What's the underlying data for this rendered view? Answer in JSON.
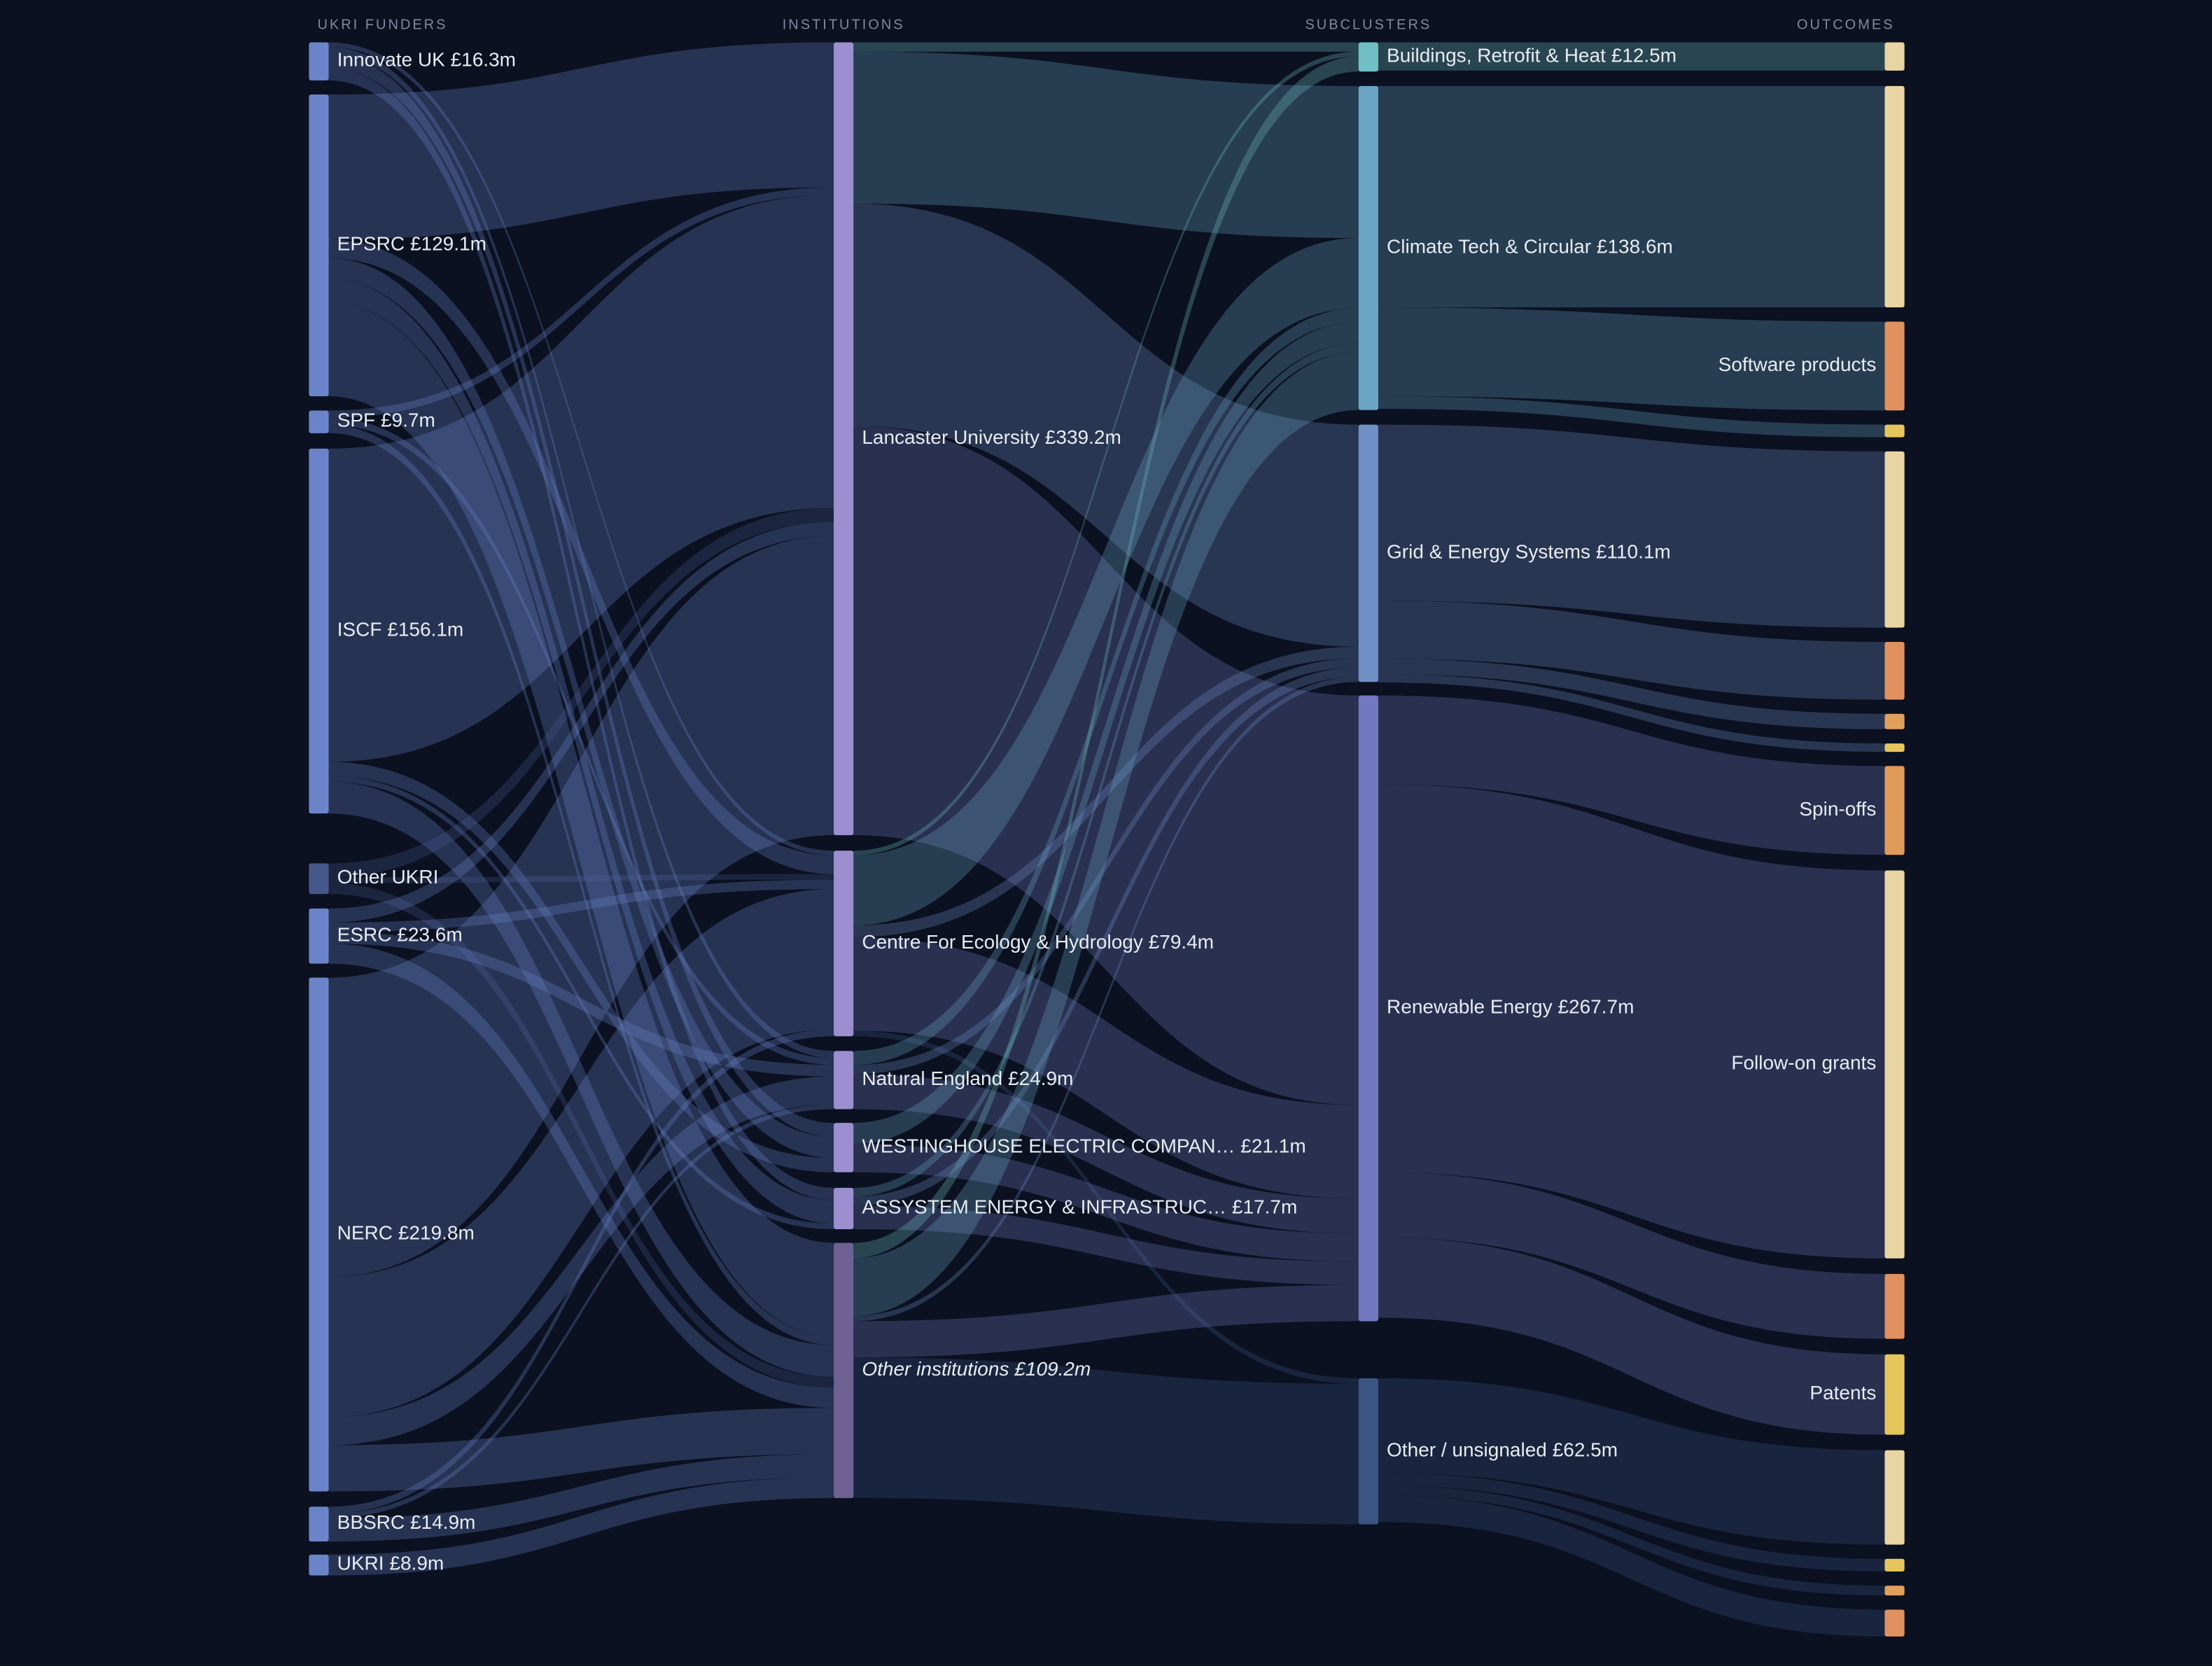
{
  "chart_data": {
    "type": "sankey",
    "columns": [
      {
        "title": "UKRI FUNDERS",
        "nodes": [
          {
            "name": "Innovate UK",
            "value": 16.3,
            "value_label": "£16.3m",
            "color": "#6b84c9"
          },
          {
            "name": "EPSRC",
            "value": 129.1,
            "value_label": "£129.1m",
            "color": "#6b84c9"
          },
          {
            "name": "SPF",
            "value": 9.7,
            "value_label": "£9.7m",
            "color": "#6b84c9"
          },
          {
            "name": "ISCF",
            "value": 156.1,
            "value_label": "£156.1m",
            "color": "#6b84c9"
          },
          {
            "name": "Other UKRI",
            "value": 13.1,
            "color": "#46578a"
          },
          {
            "name": "ESRC",
            "value": 23.6,
            "value_label": "£23.6m",
            "color": "#6b84c9"
          },
          {
            "name": "NERC",
            "value": 219.8,
            "value_label": "£219.8m",
            "color": "#6b84c9"
          },
          {
            "name": "BBSRC",
            "value": 14.9,
            "value_label": "£14.9m",
            "color": "#6b84c9"
          },
          {
            "name": "UKRI",
            "value": 8.9,
            "value_label": "£8.9m",
            "color": "#6b84c9"
          }
        ]
      },
      {
        "title": "INSTITUTIONS",
        "nodes": [
          {
            "name": "Lancaster University",
            "value": 339.2,
            "value_label": "£339.2m",
            "color": "#9b8fd0"
          },
          {
            "name": "Centre For Ecology & Hydrology",
            "value": 79.4,
            "value_label": "£79.4m",
            "color": "#9b8fd0"
          },
          {
            "name": "Natural England",
            "value": 24.9,
            "value_label": "£24.9m",
            "color": "#9b8fd0"
          },
          {
            "name": "WESTINGHOUSE ELECTRIC COMPAN…",
            "value": 21.1,
            "value_label": "£21.1m",
            "color": "#9b8fd0"
          },
          {
            "name": "ASSYSTEM ENERGY & INFRASTRUC…",
            "value": 17.7,
            "value_label": "£17.7m",
            "color": "#9b8fd0"
          },
          {
            "name": "Other institutions",
            "value": 109.2,
            "value_label": "£109.2m",
            "color": "#6e6294",
            "italic": true
          }
        ]
      },
      {
        "title": "SUBCLUSTERS",
        "nodes": [
          {
            "name": "Buildings, Retrofit & Heat",
            "value": 12.5,
            "value_label": "£12.5m",
            "color": "#6fbfc4"
          },
          {
            "name": "Climate Tech & Circular",
            "value": 138.6,
            "value_label": "£138.6m",
            "color": "#6aa5c4"
          },
          {
            "name": "Grid & Energy Systems",
            "value": 110.1,
            "value_label": "£110.1m",
            "color": "#7090c8"
          },
          {
            "name": "Renewable Energy",
            "value": 267.7,
            "value_label": "£267.7m",
            "color": "#7279c0"
          },
          {
            "name": "Other / unsignaled",
            "value": 62.5,
            "value_label": "£62.5m",
            "color": "#3b5585"
          }
        ]
      },
      {
        "title": "OUTCOMES",
        "nodes": [
          {
            "name": null,
            "value": 12.1,
            "color": "#e8d5a3"
          },
          {
            "name": null,
            "value": 94.7,
            "color": "#e8d5a3"
          },
          {
            "name": "Software products",
            "value": 38,
            "color": "#e0915f"
          },
          {
            "name": null,
            "value": 5.4,
            "color": "#e6c65c"
          },
          {
            "name": null,
            "value": 75.4,
            "color": "#e8d5a3"
          },
          {
            "name": null,
            "value": 24.7,
            "color": "#e0915f"
          },
          {
            "name": null,
            "value": 6.6,
            "color": "#e0a05c"
          },
          {
            "name": null,
            "value": 3.6,
            "color": "#e6c65c"
          },
          {
            "name": "Spin-offs",
            "value": 38,
            "color": "#e09a5a"
          },
          {
            "name": "Follow-on grants",
            "value": 166,
            "color": "#e8d5a3"
          },
          {
            "name": null,
            "value": 27.8,
            "color": "#e0915f"
          },
          {
            "name": "Patents",
            "value": 34.4,
            "color": "#e6c65c"
          },
          {
            "name": null,
            "value": 40.4,
            "color": "#e8d5a3"
          },
          {
            "name": null,
            "value": 5.4,
            "color": "#e6c65c"
          },
          {
            "name": null,
            "value": 4.2,
            "color": "#e0a05c"
          },
          {
            "name": null,
            "value": 11.5,
            "color": "#e0915f"
          }
        ]
      }
    ],
    "links": [
      [
        {
          "source": 0,
          "target": 1,
          "value": 2
        },
        {
          "source": 0,
          "target": 2,
          "value": 3
        },
        {
          "source": 0,
          "target": 3,
          "value": 6
        },
        {
          "source": 0,
          "target": 4,
          "value": 5.3
        },
        {
          "source": 1,
          "target": 0,
          "value": 62
        },
        {
          "source": 1,
          "target": 1,
          "value": 8
        },
        {
          "source": 1,
          "target": 3,
          "value": 9
        },
        {
          "source": 1,
          "target": 4,
          "value": 10
        },
        {
          "source": 1,
          "target": 5,
          "value": 40.1
        },
        {
          "source": 2,
          "target": 0,
          "value": 3.2
        },
        {
          "source": 2,
          "target": 2,
          "value": 2.9
        },
        {
          "source": 2,
          "target": 5,
          "value": 3.6
        },
        {
          "source": 3,
          "target": 0,
          "value": 134
        },
        {
          "source": 3,
          "target": 3,
          "value": 6.1
        },
        {
          "source": 3,
          "target": 4,
          "value": 2.4
        },
        {
          "source": 3,
          "target": 5,
          "value": 13.6
        },
        {
          "source": 4,
          "target": 0,
          "value": 6
        },
        {
          "source": 4,
          "target": 1,
          "value": 2.4
        },
        {
          "source": 4,
          "target": 5,
          "value": 4.7
        },
        {
          "source": 5,
          "target": 0,
          "value": 6
        },
        {
          "source": 5,
          "target": 1,
          "value": 4
        },
        {
          "source": 5,
          "target": 2,
          "value": 5
        },
        {
          "source": 5,
          "target": 5,
          "value": 8.6
        },
        {
          "source": 6,
          "target": 0,
          "value": 128
        },
        {
          "source": 6,
          "target": 1,
          "value": 60
        },
        {
          "source": 6,
          "target": 2,
          "value": 12
        },
        {
          "source": 6,
          "target": 5,
          "value": 19.8
        },
        {
          "source": 7,
          "target": 1,
          "value": 3
        },
        {
          "source": 7,
          "target": 2,
          "value": 2
        },
        {
          "source": 7,
          "target": 5,
          "value": 9.9
        },
        {
          "source": 8,
          "target": 5,
          "value": 8.9
        }
      ],
      [
        {
          "source": 0,
          "target": 0,
          "value": 4
        },
        {
          "source": 0,
          "target": 1,
          "value": 65
        },
        {
          "source": 0,
          "target": 2,
          "value": 95
        },
        {
          "source": 0,
          "target": 3,
          "value": 175.2
        },
        {
          "source": 1,
          "target": 0,
          "value": 2
        },
        {
          "source": 1,
          "target": 1,
          "value": 30
        },
        {
          "source": 1,
          "target": 2,
          "value": 5
        },
        {
          "source": 1,
          "target": 3,
          "value": 40
        },
        {
          "source": 1,
          "target": 4,
          "value": 2.4
        },
        {
          "source": 2,
          "target": 1,
          "value": 6
        },
        {
          "source": 2,
          "target": 2,
          "value": 3.9
        },
        {
          "source": 2,
          "target": 3,
          "value": 15
        },
        {
          "source": 3,
          "target": 1,
          "value": 9.1
        },
        {
          "source": 3,
          "target": 3,
          "value": 12
        },
        {
          "source": 4,
          "target": 1,
          "value": 3.7
        },
        {
          "source": 4,
          "target": 2,
          "value": 4
        },
        {
          "source": 4,
          "target": 3,
          "value": 10
        },
        {
          "source": 5,
          "target": 0,
          "value": 6.5
        },
        {
          "source": 5,
          "target": 1,
          "value": 24.8
        },
        {
          "source": 5,
          "target": 2,
          "value": 2.2
        },
        {
          "source": 5,
          "target": 3,
          "value": 15.5
        },
        {
          "source": 5,
          "target": 4,
          "value": 60.1
        }
      ],
      [
        {
          "source": 0,
          "target": 0,
          "value": 12.1
        },
        {
          "source": 1,
          "target": 1,
          "value": 94.7
        },
        {
          "source": 1,
          "target": 2,
          "value": 38
        },
        {
          "source": 1,
          "target": 3,
          "value": 5.4
        },
        {
          "source": 2,
          "target": 4,
          "value": 75.4
        },
        {
          "source": 2,
          "target": 5,
          "value": 24.7
        },
        {
          "source": 2,
          "target": 6,
          "value": 6.6
        },
        {
          "source": 2,
          "target": 7,
          "value": 3.6
        },
        {
          "source": 3,
          "target": 8,
          "value": 38
        },
        {
          "source": 3,
          "target": 9,
          "value": 166
        },
        {
          "source": 3,
          "target": 10,
          "value": 27.8
        },
        {
          "source": 3,
          "target": 11,
          "value": 34.4
        },
        {
          "source": 4,
          "target": 12,
          "value": 40.4
        },
        {
          "source": 4,
          "target": 13,
          "value": 5.4
        },
        {
          "source": 4,
          "target": 14,
          "value": 4.2
        },
        {
          "source": 4,
          "target": 15,
          "value": 11.5
        }
      ]
    ]
  }
}
